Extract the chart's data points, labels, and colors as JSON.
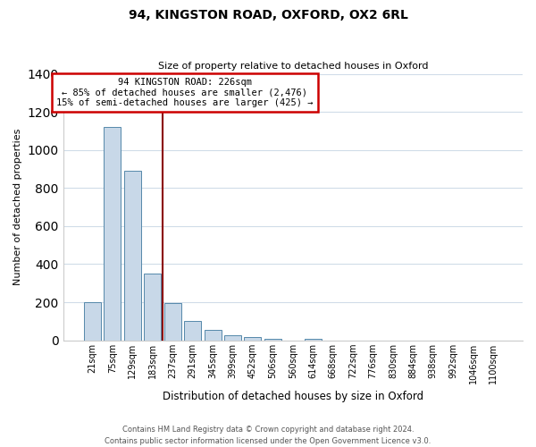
{
  "title": "94, KINGSTON ROAD, OXFORD, OX2 6RL",
  "subtitle": "Size of property relative to detached houses in Oxford",
  "xlabel": "Distribution of detached houses by size in Oxford",
  "ylabel": "Number of detached properties",
  "bin_labels": [
    "21sqm",
    "75sqm",
    "129sqm",
    "183sqm",
    "237sqm",
    "291sqm",
    "345sqm",
    "399sqm",
    "452sqm",
    "506sqm",
    "560sqm",
    "614sqm",
    "668sqm",
    "722sqm",
    "776sqm",
    "830sqm",
    "884sqm",
    "938sqm",
    "992sqm",
    "1046sqm",
    "1100sqm"
  ],
  "bar_heights": [
    200,
    1120,
    890,
    350,
    195,
    100,
    57,
    25,
    18,
    10,
    0,
    10,
    0,
    0,
    0,
    0,
    0,
    0,
    0,
    0,
    0
  ],
  "bar_color": "#c8d8e8",
  "bar_edge_color": "#5588aa",
  "property_line_color": "#8b0000",
  "ylim": [
    0,
    1400
  ],
  "yticks": [
    0,
    200,
    400,
    600,
    800,
    1000,
    1200,
    1400
  ],
  "annotation_title": "94 KINGSTON ROAD: 226sqm",
  "annotation_line1": "← 85% of detached houses are smaller (2,476)",
  "annotation_line2": "15% of semi-detached houses are larger (425) →",
  "annotation_box_color": "#ffffff",
  "annotation_box_edge": "#cc0000",
  "footnote1": "Contains HM Land Registry data © Crown copyright and database right 2024.",
  "footnote2": "Contains public sector information licensed under the Open Government Licence v3.0.",
  "background_color": "#ffffff",
  "grid_color": "#d0dce8",
  "title_fontsize": 10,
  "subtitle_fontsize": 8,
  "ylabel_fontsize": 8,
  "xlabel_fontsize": 8.5
}
